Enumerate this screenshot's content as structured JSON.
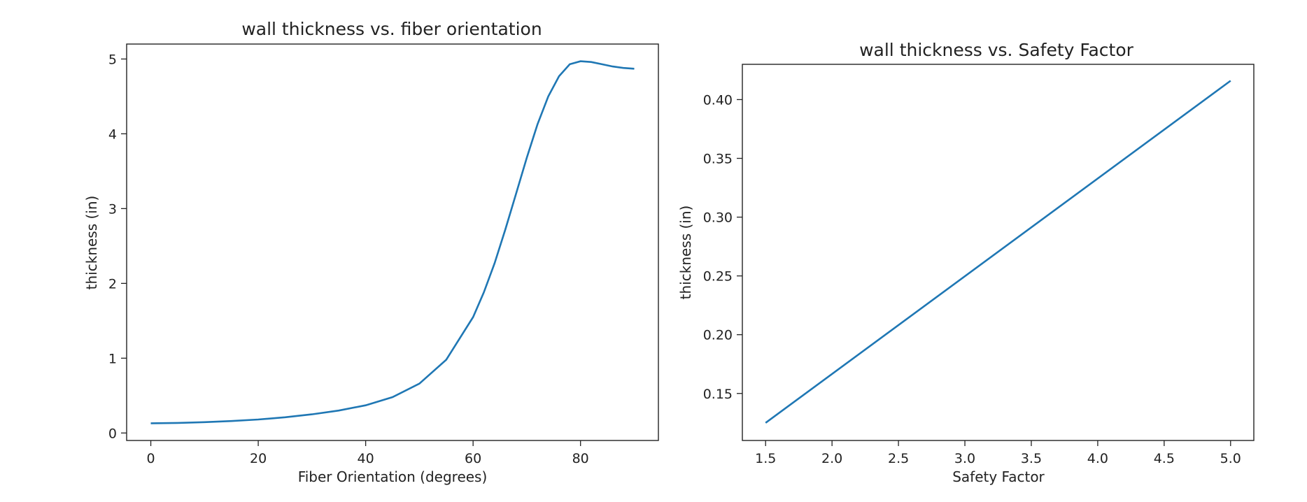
{
  "chart_data": [
    {
      "type": "line",
      "title": "wall thickness vs. fiber orientation",
      "xlabel": "Fiber Orientation (degrees)",
      "ylabel": "thickness (in)",
      "xlim": [
        -4.5,
        94.5
      ],
      "ylim": [
        -0.1,
        5.2
      ],
      "xticks": [
        0,
        20,
        40,
        60,
        80
      ],
      "yticks": [
        0,
        1,
        2,
        3,
        4,
        5
      ],
      "grid": false,
      "color": "#1f77b4",
      "series": [
        {
          "x": [
            0,
            5,
            10,
            15,
            20,
            25,
            30,
            35,
            40,
            45,
            50,
            55,
            60,
            62,
            64,
            66,
            68,
            70,
            72,
            74,
            76,
            78,
            80,
            82,
            84,
            86,
            88,
            90
          ],
          "values": [
            0.13,
            0.135,
            0.145,
            0.16,
            0.18,
            0.21,
            0.25,
            0.3,
            0.37,
            0.48,
            0.66,
            0.98,
            1.55,
            1.88,
            2.27,
            2.72,
            3.2,
            3.68,
            4.13,
            4.5,
            4.77,
            4.93,
            4.97,
            4.96,
            4.93,
            4.9,
            4.88,
            4.87
          ]
        }
      ]
    },
    {
      "type": "line",
      "title": "wall thickness vs. Safety Factor",
      "xlabel": "Safety Factor",
      "ylabel": "thickness (in)",
      "xlim": [
        1.325,
        5.175
      ],
      "ylim": [
        0.11,
        0.43
      ],
      "xticks": [
        1.5,
        2.0,
        2.5,
        3.0,
        3.5,
        4.0,
        4.5,
        5.0
      ],
      "yticks": [
        0.15,
        0.2,
        0.25,
        0.3,
        0.35,
        0.4
      ],
      "grid": false,
      "color": "#1f77b4",
      "series": [
        {
          "x": [
            1.5,
            5.0
          ],
          "values": [
            0.125,
            0.416
          ]
        }
      ]
    }
  ]
}
